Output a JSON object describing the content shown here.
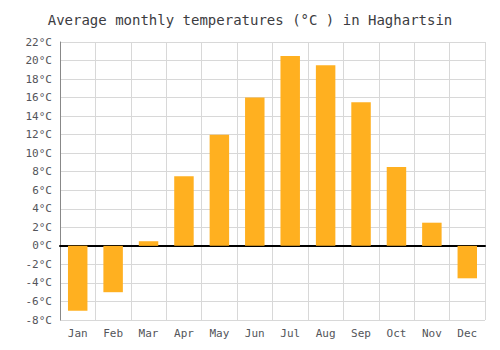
{
  "chart_data": {
    "type": "bar",
    "title": "Average monthly temperatures (°C ) in Haghartsin",
    "categories": [
      "Jan",
      "Feb",
      "Mar",
      "Apr",
      "May",
      "Jun",
      "Jul",
      "Aug",
      "Sep",
      "Oct",
      "Nov",
      "Dec"
    ],
    "values": [
      -7,
      -5,
      0.5,
      7.5,
      12,
      16,
      20.5,
      19.5,
      15.5,
      8.5,
      2.5,
      -3.5
    ],
    "color": "#FFB020",
    "ylim": [
      -8,
      22
    ],
    "yticks": [
      {
        "value": -8,
        "label": "-8°C"
      },
      {
        "value": -6,
        "label": "-6°C"
      },
      {
        "value": -4,
        "label": "-4°C"
      },
      {
        "value": -2,
        "label": "-2°C"
      },
      {
        "value": 0,
        "label": "0°C"
      },
      {
        "value": 2,
        "label": "2°C"
      },
      {
        "value": 4,
        "label": "4°C"
      },
      {
        "value": 6,
        "label": "6°C"
      },
      {
        "value": 8,
        "label": "8°C"
      },
      {
        "value": 10,
        "label": "10°C"
      },
      {
        "value": 12,
        "label": "12°C"
      },
      {
        "value": 14,
        "label": "14°C"
      },
      {
        "value": 16,
        "label": "16°C"
      },
      {
        "value": 18,
        "label": "18°C"
      },
      {
        "value": 20,
        "label": "20°C"
      },
      {
        "value": 22,
        "label": "22°C"
      }
    ],
    "grid": true
  }
}
